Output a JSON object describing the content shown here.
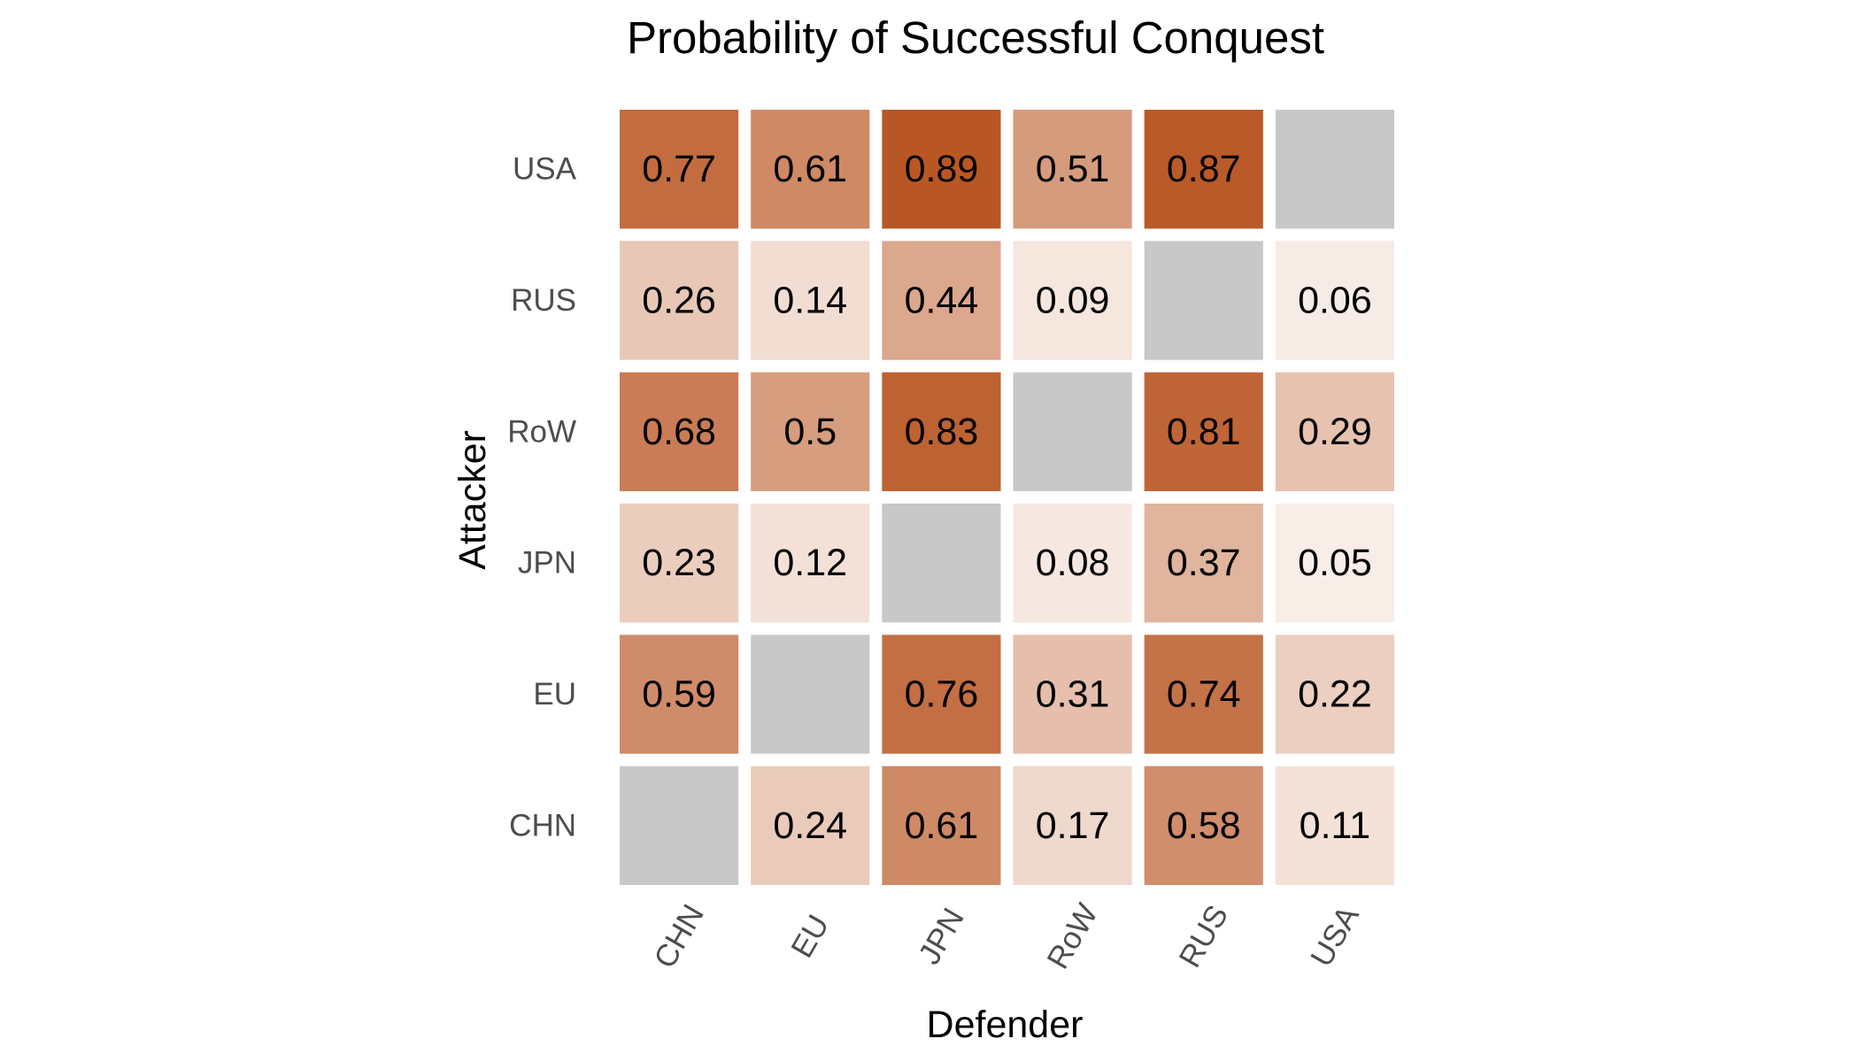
{
  "chart_data": {
    "type": "heatmap",
    "title": "Probability of Successful Conquest",
    "xlabel": "Defender",
    "ylabel": "Attacker",
    "x_categories": [
      "CHN",
      "EU",
      "JPN",
      "RoW",
      "RUS",
      "USA"
    ],
    "y_categories": [
      "CHN",
      "EU",
      "JPN",
      "RoW",
      "RUS",
      "USA"
    ],
    "values": [
      [
        null,
        0.24,
        0.61,
        0.17,
        0.58,
        0.11
      ],
      [
        0.59,
        null,
        0.76,
        0.31,
        0.74,
        0.22
      ],
      [
        0.23,
        0.12,
        null,
        0.08,
        0.37,
        0.05
      ],
      [
        0.68,
        0.5,
        0.83,
        null,
        0.81,
        0.29
      ],
      [
        0.26,
        0.14,
        0.44,
        0.09,
        null,
        0.06
      ],
      [
        0.77,
        0.61,
        0.89,
        0.51,
        0.87,
        null
      ]
    ],
    "color_scale": {
      "low": "#fcf6f3",
      "high": "#b85522",
      "missing": "#c8c8c8",
      "domain": [
        0,
        0.9
      ]
    },
    "x_tick_rotation": "-60deg",
    "grid": false,
    "legend": "none"
  }
}
